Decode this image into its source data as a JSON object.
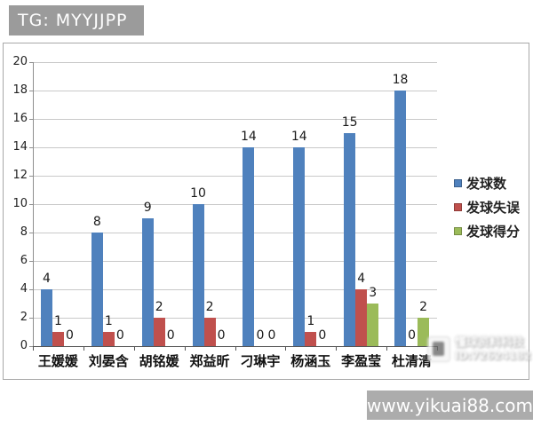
{
  "header": {
    "badge": "TG: MYYJJPP"
  },
  "watermark": {
    "line1": "懂球资料科技",
    "line2": "ID:72624182"
  },
  "footer": {
    "site": "www.yikuai88.com"
  },
  "chart_data": {
    "type": "bar",
    "title": "",
    "xlabel": "",
    "ylabel": "",
    "categories": [
      "王媛媛",
      "刘晏含",
      "胡铭媛",
      "郑益昕",
      "刁琳宇",
      "杨涵玉",
      "李盈莹",
      "杜清清"
    ],
    "series": [
      {
        "name": "发球数",
        "color": "#4f81bd",
        "values": [
          4,
          8,
          9,
          10,
          14,
          14,
          15,
          18
        ]
      },
      {
        "name": "发球失误",
        "color": "#c0504d",
        "values": [
          1,
          1,
          2,
          2,
          0,
          1,
          4,
          0
        ]
      },
      {
        "name": "发球得分",
        "color": "#9bbb59",
        "values": [
          0,
          0,
          0,
          0,
          0,
          0,
          3,
          2
        ]
      }
    ],
    "ylim": [
      0,
      20
    ],
    "ytick_step": 2,
    "grid": true,
    "legend_position": "right",
    "value_labels": true
  }
}
